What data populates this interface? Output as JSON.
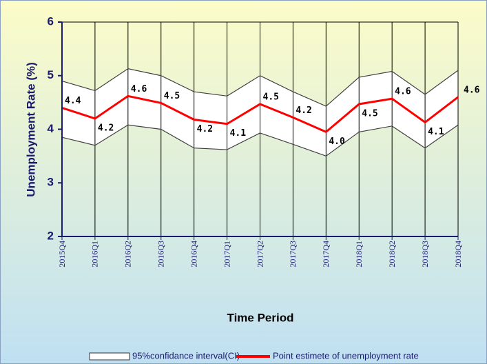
{
  "chart_data": {
    "type": "band-line",
    "x_label": "Time Period",
    "y_label": "Unemployment Rate (%)",
    "categories": [
      "2015Q4",
      "2016Q1",
      "2016Q2",
      "2016Q3",
      "2016Q4",
      "2017Q1",
      "2017Q2",
      "2017Q3",
      "2017Q4",
      "2018Q1",
      "2018Q2",
      "2018Q3",
      "2018Q4"
    ],
    "series": [
      {
        "name": "95%confidance interval(CI)",
        "color": "#404040",
        "upper": [
          4.9,
          4.72,
          5.13,
          5.0,
          4.7,
          4.62,
          5.0,
          4.7,
          4.43,
          4.97,
          5.08,
          4.65,
          5.1
        ],
        "lower": [
          3.85,
          3.7,
          4.08,
          4.0,
          3.65,
          3.62,
          3.93,
          3.72,
          3.5,
          3.95,
          4.06,
          3.65,
          4.08
        ]
      },
      {
        "name": "Point estimete of unemployment rate",
        "color": "#ff0000",
        "values": [
          4.4,
          4.2,
          4.62,
          4.49,
          4.18,
          4.1,
          4.47,
          4.22,
          3.95,
          4.47,
          4.57,
          4.13,
          4.6
        ],
        "value_labels": [
          "4.4",
          "4.2",
          "4.6",
          "4.5",
          "4.2",
          "4.1",
          "4.5",
          "4.2",
          "4.0",
          "4.5",
          "4.6",
          "4.1",
          "4.6"
        ]
      }
    ],
    "ylim": [
      2,
      6
    ],
    "yticks": [
      2,
      3,
      4,
      5,
      6
    ]
  }
}
